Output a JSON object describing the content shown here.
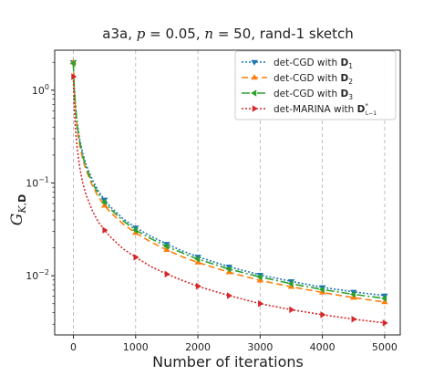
{
  "chart_data": {
    "type": "line",
    "title": {
      "prefix": "a3a, ",
      "p_sym": "p",
      "p_rest": " = 0.05, ",
      "n_sym": "n",
      "n_rest": " = 50, rand-1 sketch"
    },
    "xlabel": "Number of iterations",
    "ylabel": {
      "main": "G",
      "sub_k": "K",
      "sub_sep": ",",
      "sub_d": "D"
    },
    "x_scale": "linear",
    "y_scale": "log",
    "xlim": [
      -300,
      5250
    ],
    "ylim": [
      0.0023,
      2.7
    ],
    "x_ticks": [
      0,
      1000,
      2000,
      3000,
      4000,
      5000
    ],
    "y_ticks": [
      {
        "value": 1,
        "base": "10",
        "exp": "0"
      },
      {
        "value": 0.1,
        "base": "10",
        "exp": "−1"
      },
      {
        "value": 0.01,
        "base": "10",
        "exp": "−2"
      }
    ],
    "grid": "vertical dashed",
    "legend_position": "top-right",
    "series": [
      {
        "name_prefix": "det-CGD with ",
        "name_sym": "D",
        "name_sub": "1",
        "color": "#1f77b4",
        "dash": "2,2",
        "marker": "tri_down",
        "x": [
          0,
          10,
          30,
          60,
          100,
          150,
          200,
          300,
          400,
          500,
          600,
          800,
          1000,
          1250,
          1500,
          1750,
          2000,
          2500,
          3000,
          3500,
          4000,
          4500,
          5000
        ],
        "y": [
          2.0,
          1.2,
          0.75,
          0.45,
          0.3,
          0.21,
          0.16,
          0.11,
          0.082,
          0.066,
          0.055,
          0.041,
          0.033,
          0.0265,
          0.022,
          0.0185,
          0.016,
          0.0125,
          0.0102,
          0.0087,
          0.0075,
          0.0067,
          0.0061
        ]
      },
      {
        "name_prefix": "det-CGD with ",
        "name_sym": "D",
        "name_sub": "2",
        "color": "#ff7f0e",
        "dash": "7,4",
        "marker": "tri_up",
        "x": [
          0,
          10,
          30,
          60,
          100,
          150,
          200,
          300,
          400,
          500,
          600,
          800,
          1000,
          1250,
          1500,
          1750,
          2000,
          2500,
          3000,
          3500,
          4000,
          4500,
          5000
        ],
        "y": [
          2.0,
          1.15,
          0.68,
          0.4,
          0.26,
          0.18,
          0.14,
          0.095,
          0.071,
          0.057,
          0.048,
          0.036,
          0.029,
          0.023,
          0.019,
          0.016,
          0.0139,
          0.0109,
          0.0089,
          0.0076,
          0.0066,
          0.0058,
          0.0052
        ]
      },
      {
        "name_prefix": "det-CGD with ",
        "name_sym": "D",
        "name_sub": "3",
        "color": "#2ca02c",
        "dash": "9,3,2,3",
        "marker": "tri_left",
        "x": [
          0,
          10,
          30,
          60,
          100,
          150,
          200,
          300,
          400,
          500,
          600,
          800,
          1000,
          1250,
          1500,
          1750,
          2000,
          2500,
          3000,
          3500,
          4000,
          4500,
          5000
        ],
        "y": [
          1.95,
          1.17,
          0.71,
          0.42,
          0.28,
          0.195,
          0.15,
          0.102,
          0.077,
          0.062,
          0.052,
          0.039,
          0.031,
          0.025,
          0.0207,
          0.0176,
          0.0151,
          0.0118,
          0.0097,
          0.0082,
          0.0071,
          0.0063,
          0.0057
        ]
      },
      {
        "name_prefix": "det-MARINA with ",
        "name_sym": "D",
        "name_sup": "*",
        "name_sub": "L−1",
        "color": "#d62728",
        "dash": "2,2",
        "marker": "tri_right",
        "x": [
          0,
          10,
          30,
          60,
          100,
          150,
          200,
          300,
          400,
          500,
          600,
          800,
          1000,
          1250,
          1500,
          1750,
          2000,
          2500,
          3000,
          3500,
          4000,
          4500,
          5000
        ],
        "y": [
          1.4,
          0.75,
          0.42,
          0.24,
          0.15,
          0.1,
          0.076,
          0.051,
          0.038,
          0.031,
          0.026,
          0.0195,
          0.0158,
          0.0125,
          0.0104,
          0.0089,
          0.0077,
          0.0061,
          0.005,
          0.0043,
          0.0038,
          0.0034,
          0.0031
        ]
      }
    ]
  }
}
